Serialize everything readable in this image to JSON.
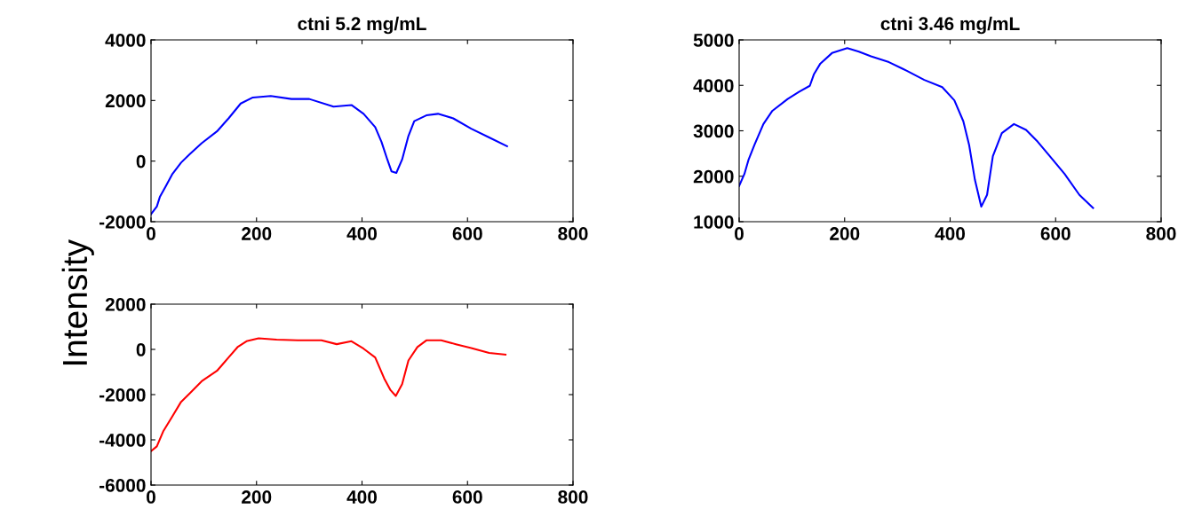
{
  "chart_data": [
    {
      "type": "line",
      "title": "ctni 5.2 mg/mL",
      "ylabel": "Intensity",
      "xlim": [
        0,
        800
      ],
      "xticks": [
        0,
        200,
        400,
        600,
        800
      ],
      "ylim": [
        -2000,
        4000
      ],
      "yticks": [
        -2000,
        0,
        2000,
        4000
      ],
      "grid": false,
      "legend": false,
      "series": [
        {
          "color": "#0000ff",
          "x": [
            0,
            11,
            17,
            28,
            40,
            57,
            74,
            96,
            125,
            147,
            170,
            193,
            227,
            266,
            300,
            346,
            380,
            403,
            425,
            437,
            448,
            456,
            465,
            476,
            488,
            499,
            522,
            544,
            573,
            607,
            641,
            675
          ],
          "values": [
            -1750,
            -1500,
            -1170,
            -830,
            -440,
            -50,
            240,
            590,
            980,
            1410,
            1900,
            2100,
            2150,
            2050,
            2050,
            1800,
            1850,
            1560,
            1120,
            630,
            50,
            -340,
            -390,
            50,
            830,
            1320,
            1510,
            1560,
            1410,
            1070,
            780,
            490
          ]
        }
      ]
    },
    {
      "type": "line",
      "title": "ctni 3.46 mg/mL",
      "xlim": [
        0,
        800
      ],
      "xticks": [
        0,
        200,
        400,
        600,
        800
      ],
      "ylim": [
        1000,
        5000
      ],
      "yticks": [
        1000,
        2000,
        3000,
        4000,
        5000
      ],
      "grid": false,
      "legend": false,
      "series": [
        {
          "color": "#0000ff",
          "x": [
            0,
            10,
            18,
            29,
            46,
            63,
            92,
            114,
            134,
            142,
            154,
            176,
            205,
            227,
            250,
            284,
            318,
            351,
            385,
            408,
            425,
            436,
            447,
            459,
            470,
            481,
            498,
            521,
            544,
            566,
            589,
            617,
            645,
            671
          ],
          "values": [
            1790,
            2050,
            2370,
            2690,
            3150,
            3440,
            3700,
            3860,
            3990,
            4250,
            4480,
            4710,
            4820,
            4740,
            4640,
            4510,
            4320,
            4120,
            3960,
            3670,
            3210,
            2690,
            1920,
            1330,
            1590,
            2440,
            2950,
            3150,
            3020,
            2760,
            2440,
            2050,
            1590,
            1300
          ]
        }
      ]
    },
    {
      "type": "line",
      "xlim": [
        0,
        800
      ],
      "xticks": [
        0,
        200,
        400,
        600,
        800
      ],
      "ylim": [
        -6000,
        2000
      ],
      "yticks": [
        -6000,
        -4000,
        -2000,
        0,
        2000
      ],
      "grid": false,
      "legend": false,
      "series": [
        {
          "color": "#ff0000",
          "x": [
            0,
            11,
            23,
            40,
            57,
            74,
            96,
            125,
            147,
            164,
            181,
            204,
            238,
            278,
            323,
            352,
            380,
            403,
            425,
            442,
            454,
            464,
            476,
            488,
            505,
            522,
            550,
            578,
            607,
            641,
            672
          ],
          "values": [
            -4500,
            -4290,
            -3630,
            -2980,
            -2320,
            -1930,
            -1410,
            -950,
            -360,
            100,
            360,
            490,
            430,
            400,
            400,
            230,
            360,
            30,
            -360,
            -1280,
            -1800,
            -2060,
            -1540,
            -490,
            100,
            400,
            400,
            230,
            60,
            -160,
            -230
          ]
        }
      ]
    }
  ]
}
